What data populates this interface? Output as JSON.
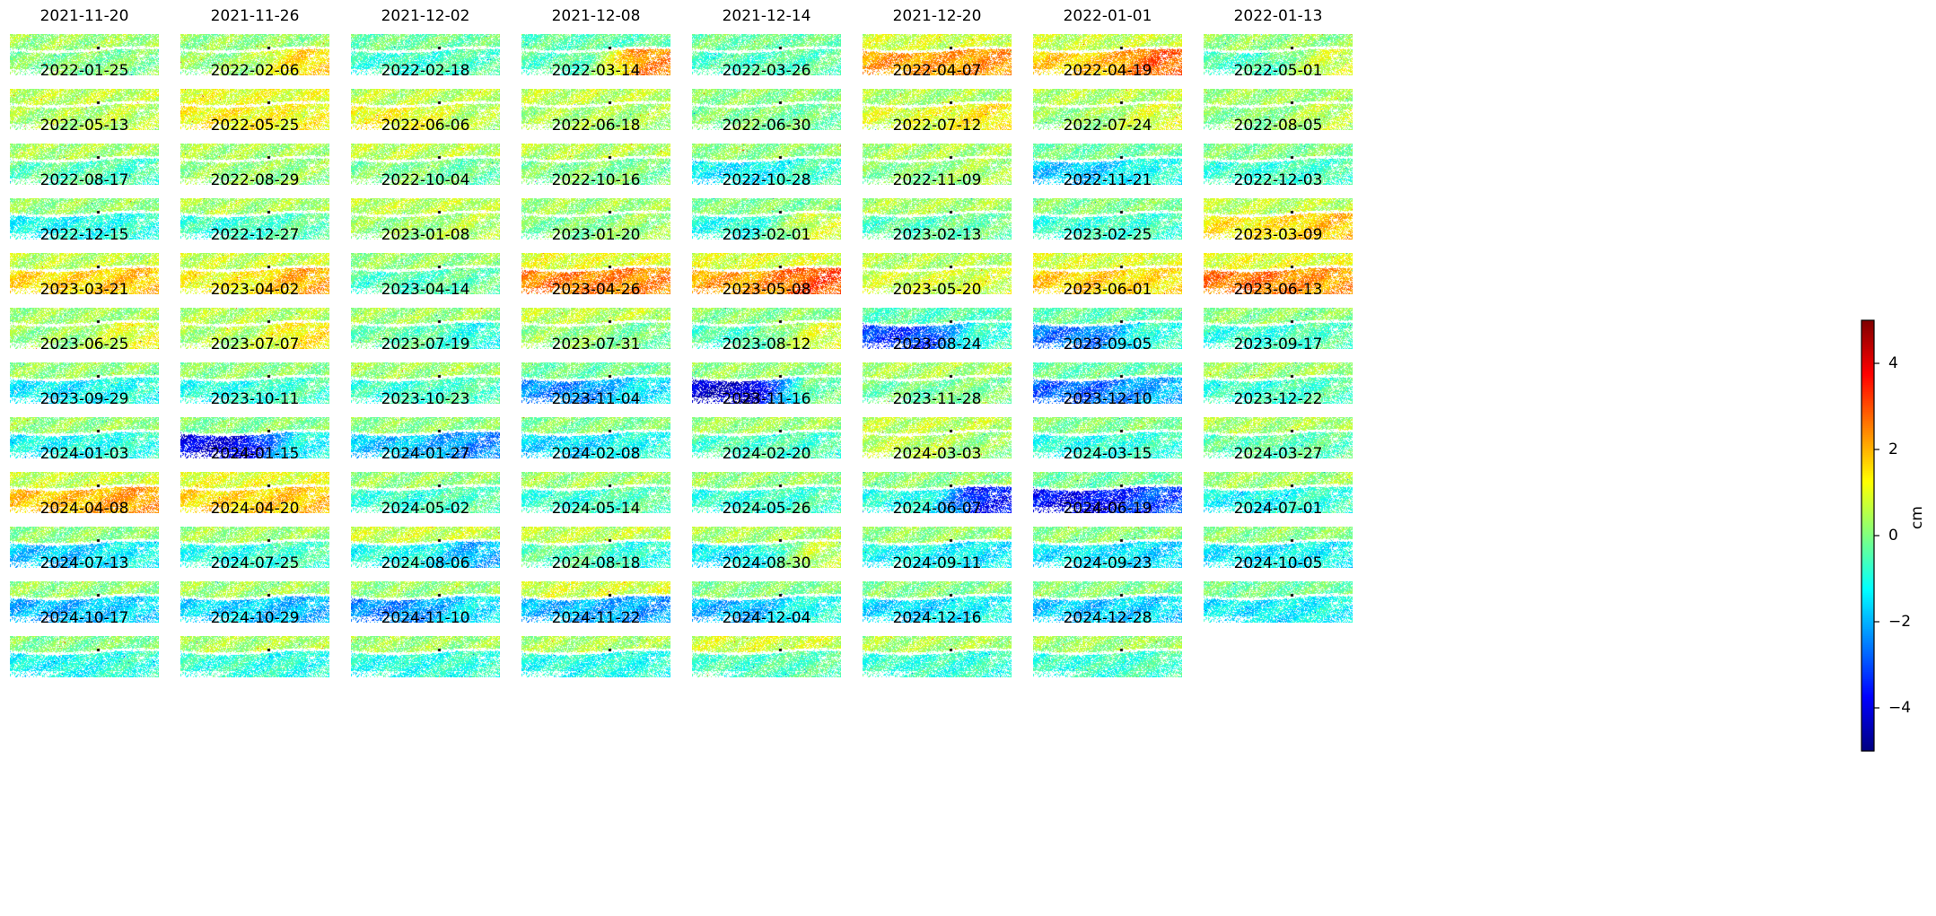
{
  "chart_data": {
    "type": "heatmap",
    "colormap": "jet",
    "unit": "cm",
    "value_range": [
      -5,
      5
    ],
    "colorbar_ticks": [
      4,
      2,
      0,
      -2,
      -4
    ],
    "colorbar_tick_labels": [
      "4",
      "2",
      "0",
      "−2",
      "−4"
    ],
    "grid_columns": 8,
    "panels": [
      {
        "date": "2021-11-20",
        "north": 0.3,
        "south": 0.0,
        "east": 0.0
      },
      {
        "date": "2021-11-26",
        "north": 0.2,
        "south": 0.2,
        "east": 1.6
      },
      {
        "date": "2021-12-02",
        "north": -0.2,
        "south": -0.8,
        "east": -0.5
      },
      {
        "date": "2021-12-08",
        "north": -0.4,
        "south": -0.5,
        "east": 2.4
      },
      {
        "date": "2021-12-14",
        "north": -0.2,
        "south": -0.6,
        "east": -0.4
      },
      {
        "date": "2021-12-20",
        "north": 0.8,
        "south": 2.2,
        "east": 2.3
      },
      {
        "date": "2022-01-01",
        "north": 0.7,
        "south": 1.7,
        "east": 2.8
      },
      {
        "date": "2022-01-13",
        "north": 0.2,
        "south": -0.6,
        "east": 0.8
      },
      {
        "date": "2022-01-25",
        "north": 0.6,
        "south": 0.4,
        "east": 0.6
      },
      {
        "date": "2022-02-06",
        "north": 1.0,
        "south": 1.3,
        "east": 1.2
      },
      {
        "date": "2022-02-18",
        "north": 0.6,
        "south": 1.2,
        "east": 0.5
      },
      {
        "date": "2022-03-14",
        "north": 0.6,
        "south": 0.4,
        "east": 0.4
      },
      {
        "date": "2022-03-26",
        "north": 0.1,
        "south": 0.0,
        "east": -0.2
      },
      {
        "date": "2022-04-07",
        "north": 0.4,
        "south": 0.9,
        "east": 1.4
      },
      {
        "date": "2022-04-19",
        "north": 0.5,
        "south": 0.2,
        "east": 0.9
      },
      {
        "date": "2022-05-01",
        "north": 0.3,
        "south": 0.0,
        "east": 0.6
      },
      {
        "date": "2022-05-13",
        "north": 0.4,
        "south": -0.4,
        "east": -0.6
      },
      {
        "date": "2022-05-25",
        "north": 0.4,
        "south": 0.2,
        "east": 0.2
      },
      {
        "date": "2022-06-06",
        "north": 0.6,
        "south": 0.0,
        "east": -0.3
      },
      {
        "date": "2022-06-18",
        "north": 0.5,
        "south": 0.0,
        "east": -0.1
      },
      {
        "date": "2022-06-30",
        "north": 0.1,
        "south": -1.4,
        "east": -0.6
      },
      {
        "date": "2022-07-12",
        "north": 0.4,
        "south": 0.0,
        "east": 0.4
      },
      {
        "date": "2022-07-24",
        "north": -0.2,
        "south": -1.8,
        "east": -1.0
      },
      {
        "date": "2022-08-05",
        "north": 0.0,
        "south": -0.8,
        "east": -0.6
      },
      {
        "date": "2022-08-17",
        "north": 0.2,
        "south": -1.2,
        "east": -0.9
      },
      {
        "date": "2022-08-29",
        "north": 0.4,
        "south": -0.8,
        "east": -0.4
      },
      {
        "date": "2022-10-04",
        "north": 0.6,
        "south": 0.2,
        "east": 0.5
      },
      {
        "date": "2022-10-16",
        "north": 0.3,
        "south": -0.1,
        "east": 0.3
      },
      {
        "date": "2022-10-28",
        "north": 0.0,
        "south": -1.0,
        "east": 0.8
      },
      {
        "date": "2022-11-09",
        "north": 0.4,
        "south": -0.5,
        "east": -0.2
      },
      {
        "date": "2022-11-21",
        "north": 0.0,
        "south": -0.8,
        "east": -0.7
      },
      {
        "date": "2022-12-03",
        "north": 0.6,
        "south": 1.4,
        "east": 1.8
      },
      {
        "date": "2022-12-15",
        "north": 0.6,
        "south": 1.6,
        "east": 1.8
      },
      {
        "date": "2022-12-27",
        "north": 0.7,
        "south": 1.2,
        "east": 2.1
      },
      {
        "date": "2023-01-08",
        "north": 0.2,
        "south": -0.6,
        "east": -0.3
      },
      {
        "date": "2023-01-20",
        "north": 1.0,
        "south": 2.5,
        "east": 2.4
      },
      {
        "date": "2023-02-01",
        "north": 0.9,
        "south": 2.1,
        "east": 3.0
      },
      {
        "date": "2023-02-13",
        "north": 0.5,
        "south": 0.8,
        "east": 0.8
      },
      {
        "date": "2023-02-25",
        "north": 0.9,
        "south": 1.7,
        "east": 1.5
      },
      {
        "date": "2023-03-09",
        "north": 1.0,
        "south": 2.6,
        "east": 2.2
      },
      {
        "date": "2023-03-21",
        "north": 0.3,
        "south": 0.2,
        "east": 1.0
      },
      {
        "date": "2023-04-02",
        "north": 0.5,
        "south": 0.4,
        "east": 1.4
      },
      {
        "date": "2023-04-14",
        "north": 0.3,
        "south": -0.3,
        "east": -1.0
      },
      {
        "date": "2023-04-26",
        "north": 0.6,
        "south": 0.2,
        "east": -0.2
      },
      {
        "date": "2023-05-08",
        "north": 0.1,
        "south": -0.6,
        "east": 0.9
      },
      {
        "date": "2023-05-20",
        "north": -0.5,
        "south": -3.2,
        "east": -0.8
      },
      {
        "date": "2023-06-01",
        "north": -0.3,
        "south": -2.6,
        "east": -0.8
      },
      {
        "date": "2023-06-13",
        "north": 0.1,
        "south": -0.9,
        "east": -0.5
      },
      {
        "date": "2023-06-25",
        "north": 0.2,
        "south": -1.4,
        "east": -1.0
      },
      {
        "date": "2023-07-07",
        "north": 0.1,
        "south": -1.0,
        "east": -0.6
      },
      {
        "date": "2023-07-19",
        "north": 0.3,
        "south": -0.8,
        "east": -0.5
      },
      {
        "date": "2023-07-31",
        "north": -0.2,
        "south": -2.4,
        "east": -1.4
      },
      {
        "date": "2023-08-12",
        "north": 0.2,
        "south": -4.2,
        "east": -0.2
      },
      {
        "date": "2023-08-24",
        "north": 0.4,
        "south": -0.2,
        "east": 0.0
      },
      {
        "date": "2023-09-05",
        "north": -0.3,
        "south": -2.8,
        "east": -2.0
      },
      {
        "date": "2023-09-17",
        "north": 0.3,
        "south": -0.8,
        "east": -0.5
      },
      {
        "date": "2023-09-29",
        "north": 0.2,
        "south": -1.2,
        "east": -0.9
      },
      {
        "date": "2023-10-11",
        "north": 0.0,
        "south": -4.0,
        "east": -1.2
      },
      {
        "date": "2023-10-23",
        "north": 0.1,
        "south": -1.8,
        "east": -2.4
      },
      {
        "date": "2023-11-04",
        "north": 0.0,
        "south": -1.6,
        "east": -1.0
      },
      {
        "date": "2023-11-16",
        "north": 0.3,
        "south": -0.6,
        "east": -0.6
      },
      {
        "date": "2023-11-28",
        "north": 0.6,
        "south": 0.6,
        "east": 0.2
      },
      {
        "date": "2023-12-10",
        "north": 0.0,
        "south": -1.0,
        "east": -0.8
      },
      {
        "date": "2023-12-22",
        "north": 0.4,
        "south": -0.4,
        "east": -0.4
      },
      {
        "date": "2024-01-03",
        "north": 0.7,
        "south": 1.8,
        "east": 2.2
      },
      {
        "date": "2024-01-15",
        "north": 1.0,
        "south": 1.6,
        "east": 1.8
      },
      {
        "date": "2024-01-27",
        "north": 0.2,
        "south": -0.8,
        "east": -0.5
      },
      {
        "date": "2024-02-08",
        "north": 0.3,
        "south": -0.8,
        "east": -0.4
      },
      {
        "date": "2024-02-20",
        "north": 0.2,
        "south": -0.9,
        "east": -0.6
      },
      {
        "date": "2024-03-03",
        "north": 0.1,
        "south": -1.0,
        "east": -3.6
      },
      {
        "date": "2024-03-15",
        "north": -0.2,
        "south": -3.8,
        "east": -3.0
      },
      {
        "date": "2024-03-27",
        "north": 0.3,
        "south": -1.2,
        "east": -0.8
      },
      {
        "date": "2024-04-08",
        "north": 0.1,
        "south": -1.8,
        "east": -1.2
      },
      {
        "date": "2024-04-20",
        "north": 0.3,
        "south": -1.0,
        "east": -0.6
      },
      {
        "date": "2024-05-02",
        "north": 0.7,
        "south": -1.0,
        "east": -2.0
      },
      {
        "date": "2024-05-14",
        "north": 0.6,
        "south": -0.4,
        "east": -1.0
      },
      {
        "date": "2024-05-26",
        "north": 0.4,
        "south": -1.4,
        "east": 0.6
      },
      {
        "date": "2024-06-07",
        "north": 0.2,
        "south": -1.2,
        "east": -1.4
      },
      {
        "date": "2024-06-19",
        "north": 0.1,
        "south": -1.4,
        "east": -1.6
      },
      {
        "date": "2024-07-01",
        "north": 0.1,
        "south": -1.4,
        "east": -1.2
      },
      {
        "date": "2024-07-13",
        "north": 0.2,
        "south": -2.0,
        "east": -1.6
      },
      {
        "date": "2024-07-25",
        "north": 0.3,
        "south": -1.6,
        "east": -2.0
      },
      {
        "date": "2024-08-06",
        "north": 0.2,
        "south": -2.4,
        "east": -1.4
      },
      {
        "date": "2024-08-18",
        "north": 0.8,
        "south": -2.0,
        "east": -2.2
      },
      {
        "date": "2024-08-30",
        "north": 0.0,
        "south": -2.0,
        "east": -1.0
      },
      {
        "date": "2024-09-11",
        "north": 0.0,
        "south": -1.6,
        "east": -1.2
      },
      {
        "date": "2024-09-23",
        "north": 0.0,
        "south": -1.8,
        "east": -1.6
      },
      {
        "date": "2024-10-05",
        "north": -0.2,
        "south": -1.4,
        "east": -1.2
      },
      {
        "date": "2024-10-17",
        "north": 0.0,
        "south": -1.2,
        "east": -0.8
      },
      {
        "date": "2024-10-29",
        "north": 0.4,
        "south": -0.8,
        "east": -1.0
      },
      {
        "date": "2024-11-10",
        "north": 0.3,
        "south": -1.0,
        "east": -0.8
      },
      {
        "date": "2024-11-22",
        "north": 0.4,
        "south": -1.0,
        "east": -1.0
      },
      {
        "date": "2024-12-04",
        "north": 0.8,
        "south": -0.6,
        "east": -0.4
      },
      {
        "date": "2024-12-16",
        "north": 0.4,
        "south": -0.8,
        "east": -0.8
      },
      {
        "date": "2024-12-28",
        "north": 0.3,
        "south": -0.8,
        "east": -0.6
      }
    ]
  }
}
